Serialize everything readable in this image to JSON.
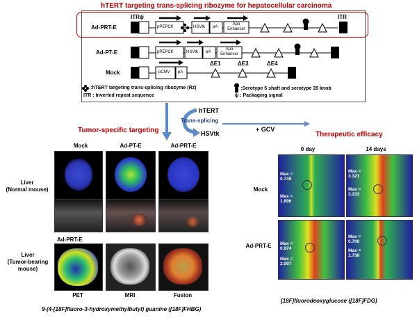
{
  "title": "hTERT targeting trans-splicing ribozyme for  hepatocellular carcinoma",
  "constructs": [
    {
      "name": "Ad-PRT-E",
      "itr_left": "ITRψ",
      "itr_right": "ITR",
      "elements": [
        "pPEPCK",
        "HSVtk",
        "pA",
        "Apo Enhancer"
      ]
    },
    {
      "name": "Ad-PT-E",
      "elements": [
        "pPEPCK",
        "HSVtk",
        "pA",
        "Apo Enhancer"
      ]
    },
    {
      "name": "Mock",
      "elements": [
        "pCMV",
        "pA"
      ],
      "deletions": [
        "ΔE1",
        "ΔE3",
        "ΔE4"
      ]
    }
  ],
  "legend": {
    "rz": ":hTERT targeting trans-splicing ribozyme (Rz)",
    "itr": "ITR  : Inverted repeat sequence",
    "knob": ":Serotype 5 shaft and serotype 35  knob",
    "psi": "ψ  : Packaging signal"
  },
  "mechanism": {
    "htert": "hTERT",
    "trans_splicing": "Trans-splicing",
    "hsvtk": "HSVtk",
    "gcv": "+ GCV"
  },
  "left_panel": {
    "heading": "Tumor-specific targeting",
    "columns": [
      "Mock",
      "Ad-PT-E",
      "Ad-PRT-E"
    ],
    "row1_label": [
      "Liver",
      "(Normal mouse)"
    ],
    "row2_inset": "Ad-PRT-E",
    "row2_label": [
      "Liver",
      "(Tumor-bearing",
      "mouse)"
    ],
    "row2_captions": [
      "PET",
      "MRI",
      "Fusion"
    ],
    "caption": "9-(4-[18F]fluoro-3-hydroxymethylbutyl)  guanine ([18F]FHBG)"
  },
  "right_panel": {
    "heading": "Therapeutic efficacy",
    "columns": [
      "0 day",
      "14 days"
    ],
    "rows": [
      {
        "label": "Mock",
        "cells": [
          [
            "Max =",
            "0.749",
            "Max =",
            "1.896"
          ],
          [
            "Max =",
            "3.321",
            "Max =",
            "3.222"
          ]
        ]
      },
      {
        "label": "Ad-PRT-E",
        "cells": [
          [
            "Max =",
            "0.974",
            "Max =",
            "2.097"
          ],
          [
            "Max =",
            "0.708",
            "Max =",
            "1.738"
          ]
        ]
      }
    ],
    "caption": "[18F]fluorodeoxyglucose  ([18F]FDG)"
  },
  "colors": {
    "accent_red": "#c00000",
    "arrow_blue": "#5b8ac6"
  }
}
